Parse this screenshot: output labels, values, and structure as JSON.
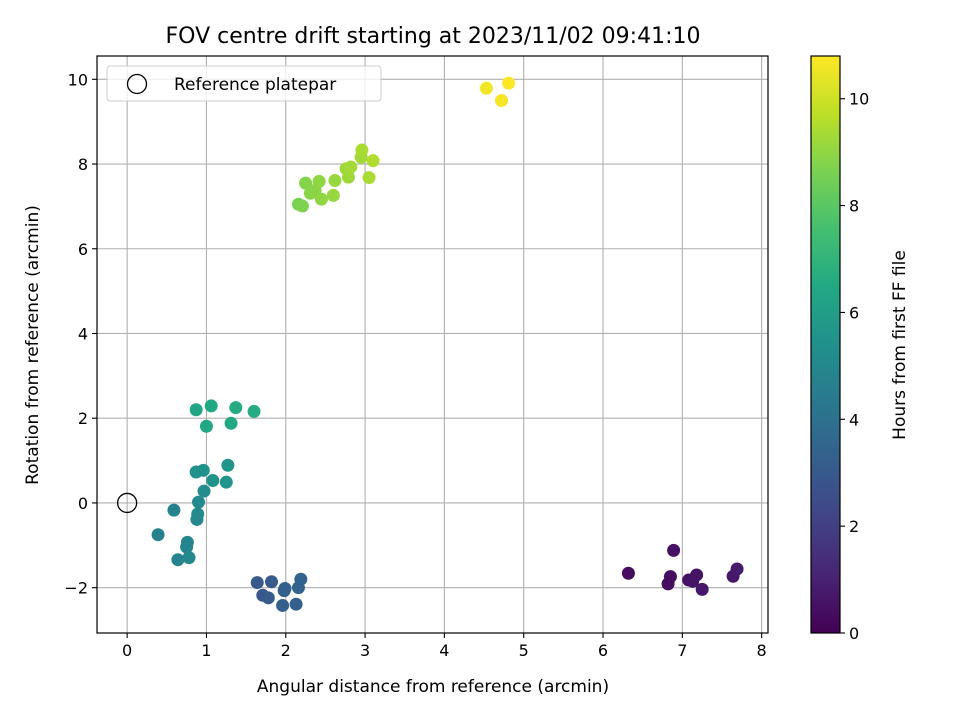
{
  "chart_data": {
    "type": "scatter",
    "title": "FOV centre drift starting at 2023/11/02 09:41:10",
    "xlabel": "Angular distance from reference (arcmin)",
    "ylabel": "Rotation from reference (arcmin)",
    "xlim": [
      -0.38,
      8.08
    ],
    "ylim": [
      -3.07,
      10.55
    ],
    "xticks": [
      "0",
      "1",
      "2",
      "3",
      "4",
      "5",
      "6",
      "7",
      "8"
    ],
    "yticks": [
      "−2",
      "0",
      "2",
      "4",
      "6",
      "8",
      "10"
    ],
    "grid": true,
    "legend": {
      "placement": "top-left",
      "entries": [
        "Reference platepar"
      ]
    },
    "reference_point": {
      "x": 0,
      "y": 0,
      "label": "Reference platepar"
    },
    "colorbar": {
      "label": "Hours from first FF file",
      "range": [
        0,
        10.8
      ],
      "ticks": [
        "0",
        "2",
        "4",
        "6",
        "8",
        "10"
      ],
      "colormap": "viridis"
    },
    "points": [
      {
        "x": 6.32,
        "y": -1.66,
        "c": 0.3
      },
      {
        "x": 6.82,
        "y": -1.91,
        "c": 0.4
      },
      {
        "x": 6.85,
        "y": -1.74,
        "c": 0.4
      },
      {
        "x": 6.89,
        "y": -1.12,
        "c": 0.5
      },
      {
        "x": 7.08,
        "y": -1.82,
        "c": 0.5
      },
      {
        "x": 7.13,
        "y": -1.85,
        "c": 0.6
      },
      {
        "x": 7.18,
        "y": -1.7,
        "c": 0.6
      },
      {
        "x": 7.25,
        "y": -2.04,
        "c": 0.7
      },
      {
        "x": 7.64,
        "y": -1.73,
        "c": 0.7
      },
      {
        "x": 7.69,
        "y": -1.56,
        "c": 0.8
      },
      {
        "x": 1.64,
        "y": -1.88,
        "c": 3.0
      },
      {
        "x": 1.71,
        "y": -2.18,
        "c": 3.0
      },
      {
        "x": 1.78,
        "y": -2.24,
        "c": 3.1
      },
      {
        "x": 1.82,
        "y": -1.86,
        "c": 3.1
      },
      {
        "x": 1.96,
        "y": -2.42,
        "c": 3.2
      },
      {
        "x": 1.98,
        "y": -2.07,
        "c": 3.2
      },
      {
        "x": 1.99,
        "y": -2.02,
        "c": 3.3
      },
      {
        "x": 2.13,
        "y": -2.39,
        "c": 3.3
      },
      {
        "x": 2.16,
        "y": -2.0,
        "c": 3.4
      },
      {
        "x": 2.19,
        "y": -1.8,
        "c": 3.4
      },
      {
        "x": 0.39,
        "y": -0.75,
        "c": 4.7
      },
      {
        "x": 0.59,
        "y": -0.17,
        "c": 4.8
      },
      {
        "x": 0.64,
        "y": -1.34,
        "c": 4.8
      },
      {
        "x": 0.75,
        "y": -1.04,
        "c": 4.9
      },
      {
        "x": 0.76,
        "y": -0.93,
        "c": 4.9
      },
      {
        "x": 0.78,
        "y": -1.29,
        "c": 5.0
      },
      {
        "x": 0.88,
        "y": -0.39,
        "c": 5.0
      },
      {
        "x": 0.89,
        "y": -0.26,
        "c": 5.1
      },
      {
        "x": 0.9,
        "y": 0.02,
        "c": 5.1
      },
      {
        "x": 0.97,
        "y": 0.28,
        "c": 5.2
      },
      {
        "x": 0.87,
        "y": 0.73,
        "c": 5.4
      },
      {
        "x": 0.96,
        "y": 0.77,
        "c": 5.4
      },
      {
        "x": 1.08,
        "y": 0.53,
        "c": 5.5
      },
      {
        "x": 1.25,
        "y": 0.49,
        "c": 5.6
      },
      {
        "x": 1.27,
        "y": 0.89,
        "c": 5.6
      },
      {
        "x": 0.87,
        "y": 2.2,
        "c": 6.4
      },
      {
        "x": 1.0,
        "y": 1.81,
        "c": 6.4
      },
      {
        "x": 1.06,
        "y": 2.29,
        "c": 6.5
      },
      {
        "x": 1.31,
        "y": 1.88,
        "c": 6.5
      },
      {
        "x": 1.37,
        "y": 2.25,
        "c": 6.6
      },
      {
        "x": 1.6,
        "y": 2.16,
        "c": 6.6
      },
      {
        "x": 2.16,
        "y": 7.05,
        "c": 8.6
      },
      {
        "x": 2.21,
        "y": 7.01,
        "c": 8.7
      },
      {
        "x": 2.25,
        "y": 7.55,
        "c": 8.8
      },
      {
        "x": 2.31,
        "y": 7.31,
        "c": 8.9
      },
      {
        "x": 2.37,
        "y": 7.38,
        "c": 8.9
      },
      {
        "x": 2.42,
        "y": 7.59,
        "c": 9.0
      },
      {
        "x": 2.45,
        "y": 7.17,
        "c": 9.0
      },
      {
        "x": 2.6,
        "y": 7.26,
        "c": 9.1
      },
      {
        "x": 2.62,
        "y": 7.61,
        "c": 9.1
      },
      {
        "x": 2.76,
        "y": 7.89,
        "c": 9.2
      },
      {
        "x": 2.79,
        "y": 7.69,
        "c": 9.2
      },
      {
        "x": 2.82,
        "y": 7.93,
        "c": 9.3
      },
      {
        "x": 2.95,
        "y": 8.16,
        "c": 9.3
      },
      {
        "x": 2.96,
        "y": 8.33,
        "c": 9.4
      },
      {
        "x": 3.05,
        "y": 7.68,
        "c": 9.4
      },
      {
        "x": 3.1,
        "y": 8.08,
        "c": 9.5
      },
      {
        "x": 4.53,
        "y": 9.79,
        "c": 10.6
      },
      {
        "x": 4.72,
        "y": 9.5,
        "c": 10.7
      },
      {
        "x": 4.81,
        "y": 9.91,
        "c": 10.8
      }
    ]
  }
}
